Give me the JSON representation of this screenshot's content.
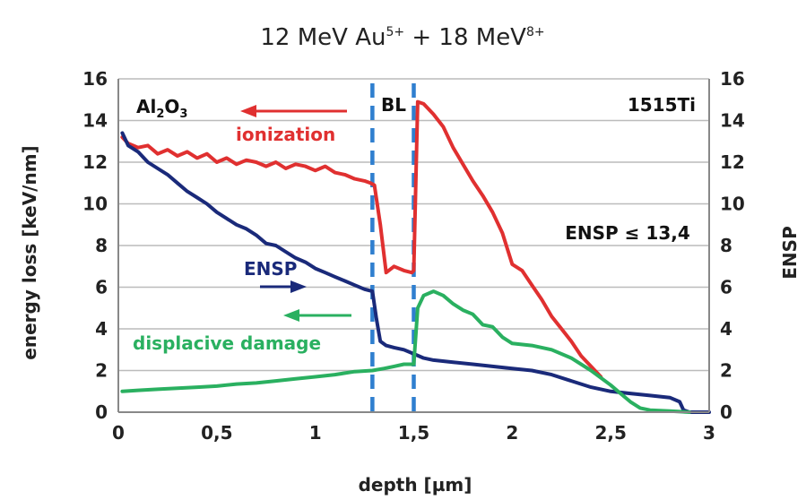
{
  "chart_data": {
    "type": "line",
    "title": {
      "part1": "12 MeV Au",
      "part1_sup": "5+",
      "part2": " + 18 MeV",
      "part2_sup": "8+"
    },
    "xlabel": "depth [µm]",
    "ylabel_left": "energy loss [keV/nm]",
    "ylabel_right": "ENSP",
    "xlim": [
      0,
      3
    ],
    "ylim_left": [
      0,
      16
    ],
    "ylim_right": [
      0,
      16
    ],
    "x_ticks": [
      "0",
      "0,5",
      "1",
      "1,5",
      "2",
      "2,5",
      "3"
    ],
    "x_tick_values": [
      0,
      0.5,
      1,
      1.5,
      2,
      2.5,
      3
    ],
    "y_ticks_left": [
      "0",
      "2",
      "4",
      "6",
      "8",
      "10",
      "12",
      "14",
      "16"
    ],
    "y_ticks_right": [
      "0",
      "2",
      "4",
      "6",
      "8",
      "10",
      "12",
      "14",
      "16"
    ],
    "y_tick_values": [
      0,
      2,
      4,
      6,
      8,
      10,
      12,
      14,
      16
    ],
    "grid": "horizontal",
    "boundaries": [
      1.29,
      1.5
    ],
    "regions": {
      "left_main": "Al",
      "left_sub": "2",
      "left_rest": "O",
      "left_sub2": "3",
      "middle": "BL",
      "right": "1515Ti"
    },
    "annotation": "ENSP ≤ 13,4",
    "series": [
      {
        "name": "ionization",
        "color": "#e03030",
        "axis": "left",
        "x": [
          0.02,
          0.05,
          0.1,
          0.15,
          0.2,
          0.25,
          0.3,
          0.35,
          0.4,
          0.45,
          0.5,
          0.55,
          0.6,
          0.65,
          0.7,
          0.75,
          0.8,
          0.85,
          0.9,
          0.95,
          1.0,
          1.05,
          1.1,
          1.15,
          1.2,
          1.25,
          1.28,
          1.3,
          1.33,
          1.36,
          1.4,
          1.45,
          1.49,
          1.5,
          1.52,
          1.55,
          1.6,
          1.65,
          1.7,
          1.75,
          1.8,
          1.85,
          1.9,
          1.95,
          2.0,
          2.05,
          2.1,
          2.15,
          2.2,
          2.25,
          2.3,
          2.35,
          2.4,
          2.45
        ],
        "y": [
          13.2,
          12.9,
          12.7,
          12.8,
          12.4,
          12.6,
          12.3,
          12.5,
          12.2,
          12.4,
          12.0,
          12.2,
          11.9,
          12.1,
          12.0,
          11.8,
          12.0,
          11.7,
          11.9,
          11.8,
          11.6,
          11.8,
          11.5,
          11.4,
          11.2,
          11.1,
          11.0,
          10.9,
          9.0,
          6.7,
          7.0,
          6.8,
          6.7,
          6.8,
          14.9,
          14.8,
          14.3,
          13.7,
          12.7,
          11.9,
          11.1,
          10.4,
          9.6,
          8.6,
          7.1,
          6.8,
          6.1,
          5.4,
          4.6,
          4.0,
          3.4,
          2.7,
          2.2,
          1.7
        ]
      },
      {
        "name": "ENSP",
        "color": "#1a2a7a",
        "axis": "right",
        "x": [
          0.02,
          0.05,
          0.1,
          0.15,
          0.2,
          0.25,
          0.3,
          0.35,
          0.4,
          0.45,
          0.5,
          0.55,
          0.6,
          0.65,
          0.7,
          0.75,
          0.8,
          0.85,
          0.9,
          0.95,
          1.0,
          1.05,
          1.1,
          1.15,
          1.2,
          1.25,
          1.29,
          1.31,
          1.33,
          1.36,
          1.4,
          1.45,
          1.5,
          1.55,
          1.6,
          1.7,
          1.8,
          1.9,
          2.0,
          2.1,
          2.2,
          2.3,
          2.4,
          2.5,
          2.6,
          2.7,
          2.8,
          2.85,
          2.87,
          2.9,
          3.0
        ],
        "y": [
          13.4,
          12.8,
          12.5,
          12.0,
          11.7,
          11.4,
          11.0,
          10.6,
          10.3,
          10.0,
          9.6,
          9.3,
          9.0,
          8.8,
          8.5,
          8.1,
          8.0,
          7.7,
          7.4,
          7.2,
          6.9,
          6.7,
          6.5,
          6.3,
          6.1,
          5.9,
          5.8,
          4.5,
          3.4,
          3.2,
          3.1,
          3.0,
          2.8,
          2.6,
          2.5,
          2.4,
          2.3,
          2.2,
          2.1,
          2.0,
          1.8,
          1.5,
          1.2,
          1.0,
          0.9,
          0.8,
          0.7,
          0.5,
          0.1,
          0.0,
          0.0
        ]
      },
      {
        "name": "displacive damage",
        "color": "#2ab060",
        "axis": "left",
        "x": [
          0.02,
          0.1,
          0.2,
          0.3,
          0.4,
          0.5,
          0.6,
          0.7,
          0.8,
          0.9,
          1.0,
          1.1,
          1.2,
          1.29,
          1.35,
          1.4,
          1.45,
          1.5,
          1.52,
          1.55,
          1.6,
          1.65,
          1.7,
          1.75,
          1.8,
          1.85,
          1.9,
          1.95,
          2.0,
          2.1,
          2.2,
          2.3,
          2.4,
          2.5,
          2.55,
          2.6,
          2.65,
          2.7,
          2.8,
          2.9
        ],
        "y": [
          1.0,
          1.05,
          1.1,
          1.15,
          1.2,
          1.25,
          1.35,
          1.4,
          1.5,
          1.6,
          1.7,
          1.8,
          1.95,
          2.0,
          2.1,
          2.2,
          2.3,
          2.3,
          5.0,
          5.6,
          5.8,
          5.6,
          5.2,
          4.9,
          4.7,
          4.2,
          4.1,
          3.6,
          3.3,
          3.2,
          3.0,
          2.6,
          2.0,
          1.3,
          0.9,
          0.5,
          0.2,
          0.1,
          0.05,
          0.0
        ]
      }
    ],
    "arrows": {
      "ionization": "left",
      "ENSP": "right",
      "displacive damage": "left"
    }
  }
}
